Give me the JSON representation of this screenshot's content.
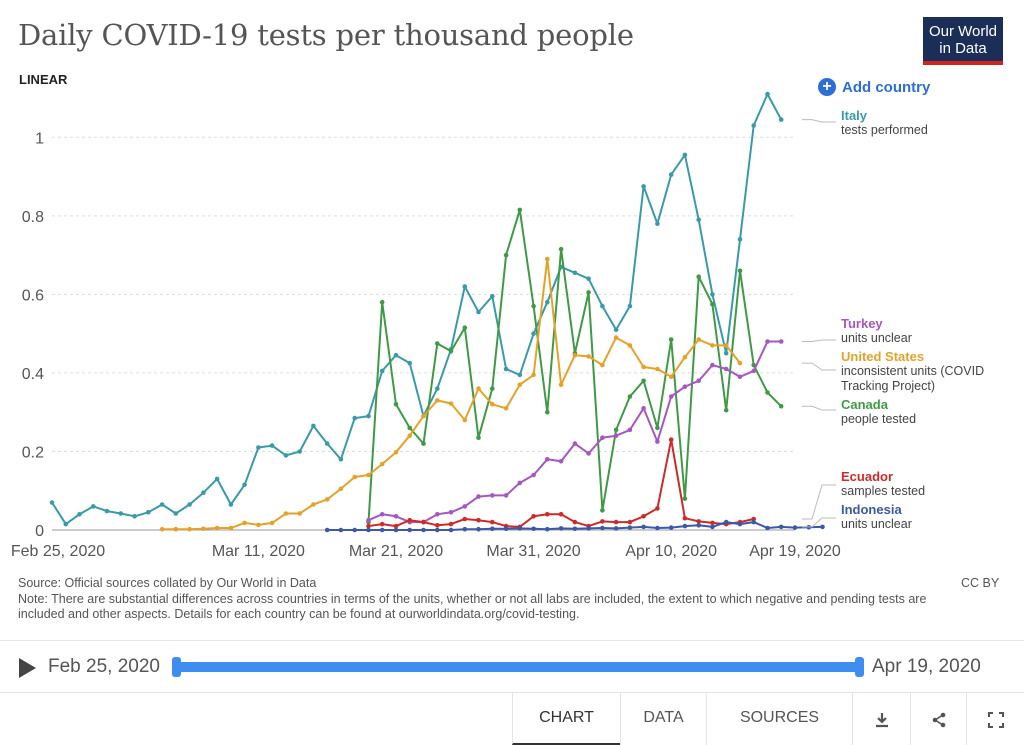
{
  "header": {
    "title": "Daily COVID-19 tests per thousand people",
    "logo_line1": "Our World",
    "logo_line2": "in Data",
    "scale_button": "LINEAR",
    "add_country": "Add country"
  },
  "footer": {
    "source": "Source: Official sources collated by Our World in Data",
    "note": "Note: There are substantial differences across countries in terms of the units, whether or not all labs are included, the extent to which negative and pending tests are included and other aspects. Details for each country can be found at ourworldindata.org/covid-testing.",
    "license": "CC BY"
  },
  "timeline": {
    "start": "Feb 25, 2020",
    "end": "Apr 19, 2020"
  },
  "tabs": {
    "chart": "CHART",
    "data": "DATA",
    "sources": "SOURCES"
  },
  "icons": {
    "play": "play-icon",
    "download": "download-icon",
    "share": "share-icon",
    "fullscreen": "fullscreen-icon"
  },
  "chart_data": {
    "type": "line",
    "title": "Daily COVID-19 tests per thousand people",
    "x_start": "2020-02-25",
    "x_end": "2020-04-19",
    "xticks": [
      "Feb 25, 2020",
      "Mar 11, 2020",
      "Mar 21, 2020",
      "Mar 31, 2020",
      "Apr 10, 2020",
      "Apr 19, 2020"
    ],
    "ylim": [
      0,
      1.1
    ],
    "yticks": [
      0,
      0.2,
      0.4,
      0.6,
      0.8,
      1
    ],
    "ytick_labels": [
      "0",
      "0.2",
      "0.4",
      "0.6",
      "0.8",
      "1"
    ],
    "grid": true,
    "series": [
      {
        "name": "Italy",
        "desc": "tests performed",
        "color": "#3a9aa8",
        "start": "2020-02-25",
        "values": [
          0.07,
          0.015,
          0.04,
          0.06,
          0.048,
          0.042,
          0.035,
          0.045,
          0.065,
          0.042,
          0.065,
          0.095,
          0.13,
          0.065,
          0.115,
          0.21,
          0.215,
          0.19,
          0.2,
          0.265,
          0.22,
          0.18,
          0.285,
          0.29,
          0.405,
          0.445,
          0.425,
          0.29,
          0.36,
          0.46,
          0.62,
          0.555,
          0.595,
          0.41,
          0.395,
          0.5,
          0.58,
          0.67,
          0.655,
          0.64,
          0.57,
          0.51,
          0.57,
          0.875,
          0.78,
          0.905,
          0.955,
          0.79,
          0.6,
          0.45,
          0.74,
          1.03,
          1.11,
          1.045
        ]
      },
      {
        "name": "Canada",
        "desc": "people tested",
        "color": "#3f9a45",
        "start": "2020-03-19",
        "values": [
          0.02,
          0.58,
          0.32,
          0.26,
          0.22,
          0.475,
          0.455,
          0.515,
          0.235,
          0.36,
          0.7,
          0.815,
          0.57,
          0.3,
          0.715,
          0.45,
          0.605,
          0.05,
          0.255,
          0.34,
          0.38,
          0.26,
          0.485,
          0.08,
          0.645,
          0.575,
          0.305,
          0.66,
          0.42,
          0.35,
          0.315
        ]
      },
      {
        "name": "United States",
        "desc": "inconsistent units (COVID Tracking Project)",
        "color": "#e5a22a",
        "start": "2020-03-04",
        "values": [
          0.002,
          0.002,
          0.002,
          0.003,
          0.005,
          0.005,
          0.018,
          0.013,
          0.018,
          0.042,
          0.042,
          0.065,
          0.078,
          0.105,
          0.135,
          0.14,
          0.168,
          0.198,
          0.24,
          0.29,
          0.33,
          0.322,
          0.28,
          0.36,
          0.32,
          0.31,
          0.37,
          0.395,
          0.69,
          0.37,
          0.445,
          0.442,
          0.42,
          0.49,
          0.47,
          0.415,
          0.41,
          0.39,
          0.44,
          0.485,
          0.47,
          0.47,
          0.425
        ]
      },
      {
        "name": "Turkey",
        "desc": "units unclear",
        "color": "#a557c2",
        "start": "2020-03-19",
        "values": [
          0.025,
          0.04,
          0.035,
          0.02,
          0.02,
          0.04,
          0.045,
          0.06,
          0.085,
          0.088,
          0.088,
          0.12,
          0.14,
          0.18,
          0.175,
          0.22,
          0.195,
          0.235,
          0.24,
          0.255,
          0.31,
          0.225,
          0.34,
          0.365,
          0.38,
          0.42,
          0.41,
          0.39,
          0.405,
          0.48,
          0.48
        ]
      },
      {
        "name": "Ecuador",
        "desc": "samples tested",
        "color": "#cc2b2b",
        "start": "2020-03-19",
        "values": [
          0.01,
          0.015,
          0.01,
          0.025,
          0.02,
          0.012,
          0.015,
          0.028,
          0.025,
          0.02,
          0.01,
          0.008,
          0.035,
          0.04,
          0.04,
          0.02,
          0.01,
          0.022,
          0.02,
          0.02,
          0.035,
          0.055,
          0.23,
          0.03,
          0.022,
          0.018,
          0.015,
          0.02,
          0.028
        ]
      },
      {
        "name": "Indonesia",
        "desc": "units unclear",
        "color": "#3b59a8",
        "start": "2020-03-16",
        "values": [
          0,
          0,
          0,
          0,
          0,
          0,
          0,
          0,
          0,
          0,
          0.002,
          0.002,
          0.003,
          0.003,
          0.004,
          0.003,
          0.002,
          0.004,
          0.003,
          0.004,
          0.005,
          0.004,
          0.006,
          0.008,
          0.005,
          0.006,
          0.01,
          0.012,
          0.008,
          0.02,
          0.015,
          0.02,
          0.005,
          0.008,
          0.006,
          0.007,
          0.008
        ]
      }
    ]
  }
}
